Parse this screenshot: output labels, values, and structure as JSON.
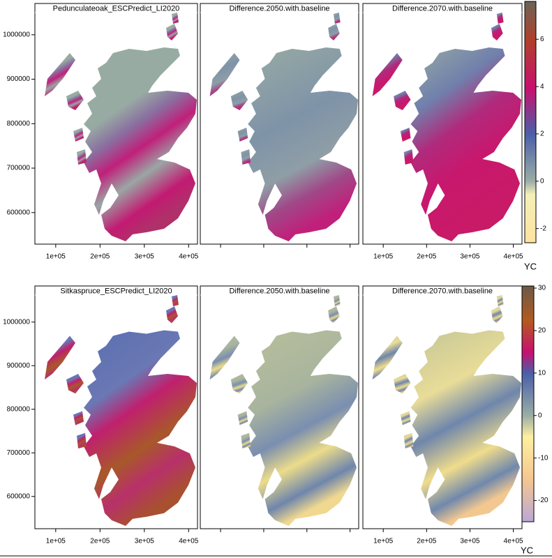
{
  "figures": [
    {
      "panels": [
        {
          "title": "Pedunculateoak_ESCPredict_LI2020"
        },
        {
          "title": "Difference.2050.with.baseline"
        },
        {
          "title": "Difference.2070.with.baseline"
        }
      ],
      "xlim": [
        53000,
        420000
      ],
      "xticks": [
        {
          "value": 100000,
          "label": "1e+05"
        },
        {
          "value": 200000,
          "label": "2e+05"
        },
        {
          "value": 300000,
          "label": "3e+05"
        },
        {
          "value": 400000,
          "label": "4e+05"
        }
      ],
      "ylim": [
        529000,
        1050000
      ],
      "yticks": [
        600000,
        700000,
        800000,
        900000,
        1000000
      ],
      "colorbar": {
        "label": "YC",
        "lim": [
          -2.6,
          7.6
        ],
        "ticks": [
          -2,
          0,
          2,
          4,
          6
        ]
      }
    },
    {
      "panels": [
        {
          "title": "Sitkaspruce_ESCPredict_LI2020"
        },
        {
          "title": "Difference.2050.with.baseline"
        },
        {
          "title": "Difference.2070.with.baseline"
        }
      ],
      "xlim": [
        53000,
        420000
      ],
      "xticks": [
        {
          "value": 100000,
          "label": "1e+05"
        },
        {
          "value": 200000,
          "label": "2e+05"
        },
        {
          "value": 300000,
          "label": "3e+05"
        },
        {
          "value": 400000,
          "label": "4e+05"
        }
      ],
      "ylim": [
        526000,
        1062000
      ],
      "yticks": [
        600000,
        700000,
        800000,
        900000,
        1000000
      ],
      "colorbar": {
        "label": "YC",
        "lim": [
          -25,
          30.5
        ],
        "ticks": [
          -20,
          -10,
          0,
          10,
          20,
          30
        ]
      }
    }
  ]
}
